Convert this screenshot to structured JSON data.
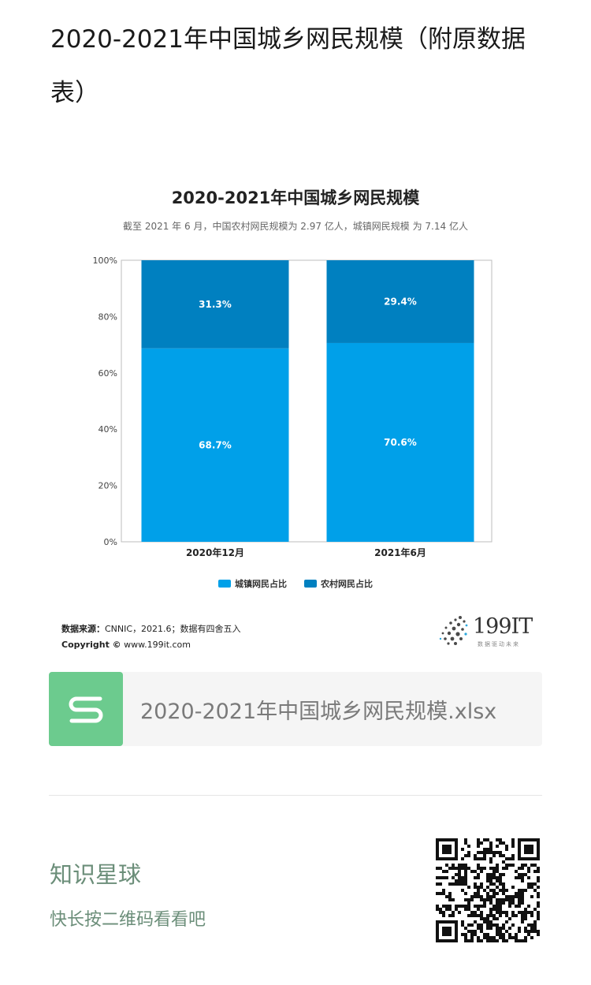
{
  "article": {
    "title": "2020-2021年中国城乡网民规模（附原数据表）"
  },
  "chart_data": {
    "type": "bar",
    "stacked": true,
    "percent": true,
    "title": "2020-2021年中国城乡网民规模",
    "subtitle": "截至 2021 年 6 月，中国农村网民规模为 2.97 亿人，城镇网民规模 为 7.14 亿人",
    "categories": [
      "2020年12月",
      "2021年6月"
    ],
    "series": [
      {
        "name": "城镇网民占比",
        "values": [
          68.7,
          70.6
        ],
        "labels": [
          "68.7%",
          "70.6%"
        ],
        "color": "#00a0e9"
      },
      {
        "name": "农村网民占比",
        "values": [
          31.3,
          29.4
        ],
        "labels": [
          "31.3%",
          "29.4%"
        ],
        "color": "#0080c0"
      }
    ],
    "yticks": [
      "0%",
      "20%",
      "40%",
      "60%",
      "80%",
      "100%"
    ],
    "ylim": [
      0,
      100
    ],
    "legend_position": "bottom"
  },
  "source": {
    "label": "数据来源：",
    "text": "CNNIC，2021.6；数据有四舍五入",
    "copyright_label": "Copyright ©",
    "copyright_text": "www.199it.com"
  },
  "logo": {
    "text": "199IT",
    "sub": "数据驱动未来"
  },
  "file": {
    "icon": "spreadsheet-s-icon",
    "name": "2020-2021年中国城乡网民规模.xlsx"
  },
  "planet": {
    "title": "知识星球",
    "subtitle": "快长按二维码看看吧"
  },
  "qr": {
    "icon": "qr-code-icon"
  }
}
